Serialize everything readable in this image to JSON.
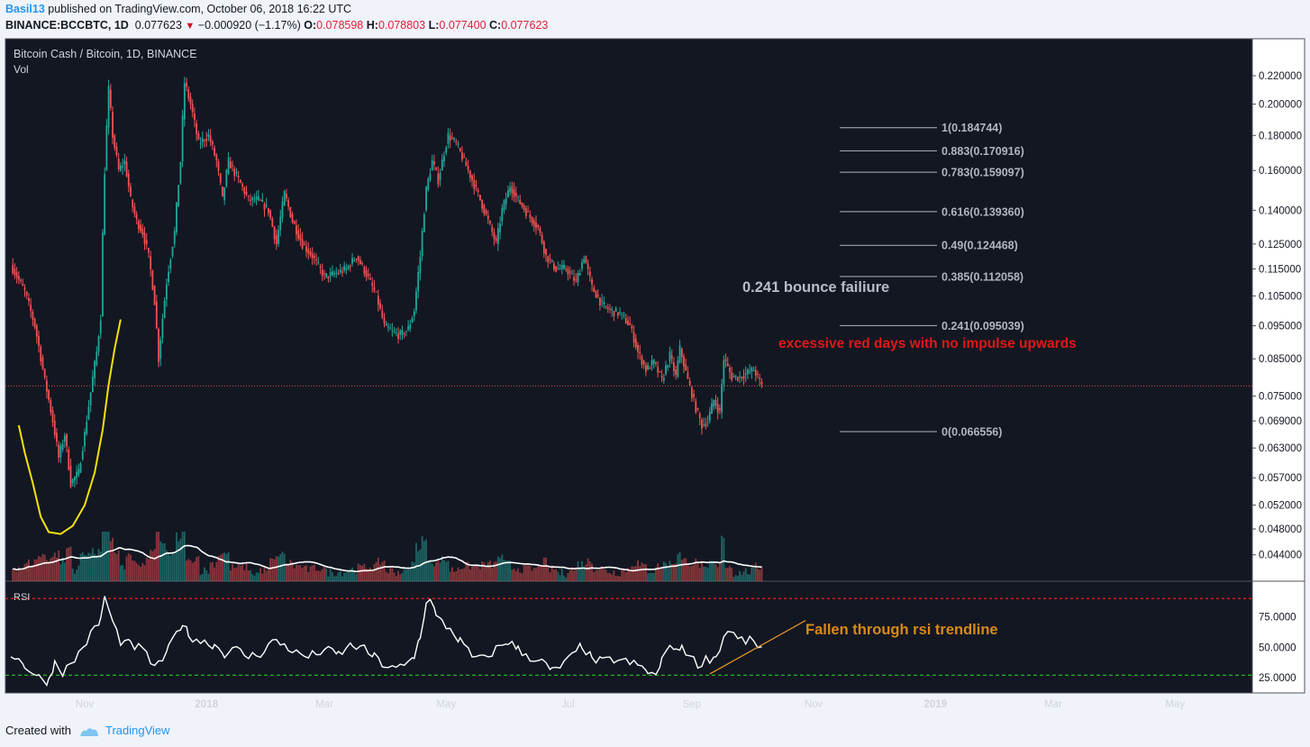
{
  "header": {
    "user": "Basil13",
    "published_text": "published on TradingView.com, October 06, 2018 16:22 UTC",
    "symbol": "BINANCE:BCCBTC, 1D",
    "last": "0.077623",
    "change": "−0.000920 (−1.17%)",
    "o_label": "O:",
    "o": "0.078598",
    "h_label": "H:",
    "h": "0.078803",
    "l_label": "L:",
    "l": "0.077400",
    "c_label": "C:",
    "c": "0.077623"
  },
  "footer": {
    "created_with": "Created with",
    "brand": "TradingView"
  },
  "chart_data": {
    "type": "candlestick",
    "title": "Bitcoin Cash / Bitcoin, 1D, BINANCE",
    "volume_label": "Vol",
    "rsi_label": "RSI",
    "price_ticks": [
      "0.220000",
      "0.200000",
      "0.180000",
      "0.160000",
      "0.140000",
      "0.125000",
      "0.115000",
      "0.105000",
      "0.095000",
      "0.085000",
      "0.075000",
      "0.069000",
      "0.063000",
      "0.057000",
      "0.052000",
      "0.048000",
      "0.044000"
    ],
    "rsi_ticks": [
      "75.0000",
      "50.0000",
      "25.0000"
    ],
    "x_ticks": [
      "Nov",
      "2018",
      "Mar",
      "May",
      "Jul",
      "Sep",
      "Nov",
      "2019",
      "Mar",
      "May"
    ],
    "current_price": 0.077623,
    "price_path": [
      [
        "2017-09-25",
        0.1165
      ],
      [
        "2017-10-02",
        0.1065
      ],
      [
        "2017-10-07",
        0.095
      ],
      [
        "2017-10-12",
        0.079
      ],
      [
        "2017-10-16",
        0.069
      ],
      [
        "2017-10-19",
        0.061
      ],
      [
        "2017-10-22",
        0.066
      ],
      [
        "2017-10-25",
        0.056
      ],
      [
        "2017-10-29",
        0.058
      ],
      [
        "2017-11-01",
        0.066
      ],
      [
        "2017-11-04",
        0.076
      ],
      [
        "2017-11-07",
        0.087
      ],
      [
        "2017-11-09",
        0.098
      ],
      [
        "2017-11-11",
        0.16
      ],
      [
        "2017-11-13",
        0.21
      ],
      [
        "2017-11-15",
        0.18
      ],
      [
        "2017-11-18",
        0.16
      ],
      [
        "2017-11-21",
        0.165
      ],
      [
        "2017-11-24",
        0.145
      ],
      [
        "2017-11-27",
        0.135
      ],
      [
        "2017-11-30",
        0.13
      ],
      [
        "2017-12-03",
        0.12
      ],
      [
        "2017-12-06",
        0.103
      ],
      [
        "2017-12-08",
        0.085
      ],
      [
        "2017-12-12",
        0.11
      ],
      [
        "2017-12-16",
        0.13
      ],
      [
        "2017-12-19",
        0.165
      ],
      [
        "2017-12-21",
        0.215
      ],
      [
        "2017-12-24",
        0.2
      ],
      [
        "2017-12-28",
        0.175
      ],
      [
        "2018-01-02",
        0.18
      ],
      [
        "2018-01-06",
        0.165
      ],
      [
        "2018-01-09",
        0.145
      ],
      [
        "2018-01-12",
        0.165
      ],
      [
        "2018-01-17",
        0.155
      ],
      [
        "2018-01-22",
        0.145
      ],
      [
        "2018-01-27",
        0.145
      ],
      [
        "2018-02-01",
        0.14
      ],
      [
        "2018-02-05",
        0.125
      ],
      [
        "2018-02-09",
        0.148
      ],
      [
        "2018-02-13",
        0.135
      ],
      [
        "2018-02-18",
        0.125
      ],
      [
        "2018-02-23",
        0.12
      ],
      [
        "2018-03-01",
        0.112
      ],
      [
        "2018-03-06",
        0.113
      ],
      [
        "2018-03-12",
        0.115
      ],
      [
        "2018-03-17",
        0.12
      ],
      [
        "2018-03-22",
        0.113
      ],
      [
        "2018-03-27",
        0.105
      ],
      [
        "2018-03-31",
        0.095
      ],
      [
        "2018-04-04",
        0.093
      ],
      [
        "2018-04-08",
        0.092
      ],
      [
        "2018-04-12",
        0.094
      ],
      [
        "2018-04-15",
        0.1
      ],
      [
        "2018-04-18",
        0.12
      ],
      [
        "2018-04-21",
        0.15
      ],
      [
        "2018-04-24",
        0.165
      ],
      [
        "2018-04-27",
        0.155
      ],
      [
        "2018-04-30",
        0.17
      ],
      [
        "2018-05-02",
        0.18
      ],
      [
        "2018-05-06",
        0.175
      ],
      [
        "2018-05-10",
        0.165
      ],
      [
        "2018-05-14",
        0.155
      ],
      [
        "2018-05-18",
        0.145
      ],
      [
        "2018-05-22",
        0.135
      ],
      [
        "2018-05-26",
        0.125
      ],
      [
        "2018-05-29",
        0.14
      ],
      [
        "2018-06-02",
        0.152
      ],
      [
        "2018-06-06",
        0.145
      ],
      [
        "2018-06-11",
        0.138
      ],
      [
        "2018-06-16",
        0.132
      ],
      [
        "2018-06-20",
        0.12
      ],
      [
        "2018-06-25",
        0.115
      ],
      [
        "2018-06-30",
        0.115
      ],
      [
        "2018-07-05",
        0.11
      ],
      [
        "2018-07-09",
        0.12
      ],
      [
        "2018-07-13",
        0.108
      ],
      [
        "2018-07-18",
        0.102
      ],
      [
        "2018-07-22",
        0.1
      ],
      [
        "2018-07-27",
        0.099
      ],
      [
        "2018-08-01",
        0.095
      ],
      [
        "2018-08-05",
        0.087
      ],
      [
        "2018-08-09",
        0.082
      ],
      [
        "2018-08-13",
        0.084
      ],
      [
        "2018-08-17",
        0.079
      ],
      [
        "2018-08-21",
        0.086
      ],
      [
        "2018-08-24",
        0.08
      ],
      [
        "2018-08-26",
        0.088
      ],
      [
        "2018-08-30",
        0.079
      ],
      [
        "2018-09-03",
        0.072
      ],
      [
        "2018-09-06",
        0.068
      ],
      [
        "2018-09-09",
        0.069
      ],
      [
        "2018-09-12",
        0.074
      ],
      [
        "2018-09-15",
        0.071
      ],
      [
        "2018-09-17",
        0.085
      ],
      [
        "2018-09-21",
        0.08
      ],
      [
        "2018-09-25",
        0.08
      ],
      [
        "2018-10-02",
        0.082
      ],
      [
        "2018-10-06",
        0.077623
      ]
    ],
    "rsi_path": [
      [
        "2017-09-25",
        45
      ],
      [
        "2017-10-02",
        35
      ],
      [
        "2017-10-09",
        25
      ],
      [
        "2017-10-14",
        22
      ],
      [
        "2017-10-17",
        38
      ],
      [
        "2017-10-21",
        30
      ],
      [
        "2017-10-25",
        35
      ],
      [
        "2017-10-29",
        45
      ],
      [
        "2017-11-02",
        55
      ],
      [
        "2017-11-06",
        65
      ],
      [
        "2017-11-09",
        72
      ],
      [
        "2017-11-11",
        92
      ],
      [
        "2017-11-15",
        70
      ],
      [
        "2017-11-19",
        55
      ],
      [
        "2017-11-24",
        52
      ],
      [
        "2017-11-30",
        48
      ],
      [
        "2017-12-04",
        38
      ],
      [
        "2017-12-08",
        35
      ],
      [
        "2017-12-13",
        48
      ],
      [
        "2017-12-17",
        62
      ],
      [
        "2017-12-20",
        70
      ],
      [
        "2017-12-23",
        60
      ],
      [
        "2017-12-29",
        55
      ],
      [
        "2018-01-05",
        52
      ],
      [
        "2018-01-10",
        45
      ],
      [
        "2018-01-16",
        48
      ],
      [
        "2018-01-22",
        42
      ],
      [
        "2018-01-28",
        45
      ],
      [
        "2018-02-03",
        55
      ],
      [
        "2018-02-09",
        52
      ],
      [
        "2018-02-15",
        45
      ],
      [
        "2018-02-21",
        42
      ],
      [
        "2018-03-01",
        48
      ],
      [
        "2018-03-08",
        44
      ],
      [
        "2018-03-15",
        52
      ],
      [
        "2018-03-21",
        48
      ],
      [
        "2018-03-26",
        42
      ],
      [
        "2018-03-31",
        35
      ],
      [
        "2018-04-04",
        32
      ],
      [
        "2018-04-10",
        34
      ],
      [
        "2018-04-15",
        42
      ],
      [
        "2018-04-18",
        60
      ],
      [
        "2018-04-21",
        85
      ],
      [
        "2018-04-23",
        92
      ],
      [
        "2018-04-26",
        75
      ],
      [
        "2018-04-29",
        70
      ],
      [
        "2018-05-03",
        65
      ],
      [
        "2018-05-08",
        55
      ],
      [
        "2018-05-14",
        42
      ],
      [
        "2018-05-20",
        40
      ],
      [
        "2018-05-27",
        50
      ],
      [
        "2018-06-01",
        55
      ],
      [
        "2018-06-06",
        48
      ],
      [
        "2018-06-12",
        42
      ],
      [
        "2018-06-18",
        38
      ],
      [
        "2018-06-23",
        30
      ],
      [
        "2018-06-27",
        34
      ],
      [
        "2018-07-03",
        42
      ],
      [
        "2018-07-08",
        52
      ],
      [
        "2018-07-13",
        40
      ],
      [
        "2018-07-18",
        38
      ],
      [
        "2018-07-24",
        40
      ],
      [
        "2018-07-30",
        38
      ],
      [
        "2018-08-05",
        35
      ],
      [
        "2018-08-10",
        30
      ],
      [
        "2018-08-14",
        26
      ],
      [
        "2018-08-17",
        38
      ],
      [
        "2018-08-21",
        55
      ],
      [
        "2018-08-24",
        45
      ],
      [
        "2018-08-27",
        52
      ],
      [
        "2018-08-31",
        42
      ],
      [
        "2018-09-04",
        36
      ],
      [
        "2018-09-08",
        40
      ],
      [
        "2018-09-13",
        42
      ],
      [
        "2018-09-17",
        58
      ],
      [
        "2018-09-20",
        65
      ],
      [
        "2018-09-24",
        56
      ],
      [
        "2018-09-30",
        55
      ],
      [
        "2018-10-06",
        50
      ]
    ],
    "yellow_curve": [
      [
        "2017-09-29",
        0.068
      ],
      [
        "2017-10-02",
        0.062
      ],
      [
        "2017-10-06",
        0.056
      ],
      [
        "2017-10-10",
        0.05
      ],
      [
        "2017-10-14",
        0.0475
      ],
      [
        "2017-10-20",
        0.0472
      ],
      [
        "2017-10-26",
        0.0485
      ],
      [
        "2017-11-01",
        0.052
      ],
      [
        "2017-11-06",
        0.058
      ],
      [
        "2017-11-10",
        0.067
      ],
      [
        "2017-11-13",
        0.078
      ],
      [
        "2017-11-16",
        0.088
      ],
      [
        "2017-11-19",
        0.097
      ]
    ],
    "rsi_trendline": [
      [
        "2018-09-10",
        28
      ],
      [
        "2018-10-28",
        72
      ]
    ],
    "rsi_overbought": 90,
    "rsi_oversold": 27,
    "fib_levels": [
      {
        "label": "1(0.184744)",
        "value": 0.184744
      },
      {
        "label": "0.883(0.170916)",
        "value": 0.170916
      },
      {
        "label": "0.783(0.159097)",
        "value": 0.159097
      },
      {
        "label": "0.616(0.139360)",
        "value": 0.13936
      },
      {
        "label": "0.49(0.124468)",
        "value": 0.124468
      },
      {
        "label": "0.385(0.112058)",
        "value": 0.112058
      },
      {
        "label": "0.241(0.095039)",
        "value": 0.095039
      },
      {
        "label": "0(0.066556)",
        "value": 0.066556
      }
    ],
    "annotations": [
      {
        "text": "0.241 bounce failiure",
        "color": "#b8bcc8"
      },
      {
        "text": "excessive red days with no impulse upwards",
        "color": "#e01818"
      },
      {
        "text": "Fallen through rsi trendline",
        "color": "#d8891a"
      }
    ],
    "colors": {
      "up": "#26a69a",
      "down": "#ef5350",
      "background": "#131722",
      "yellow": "#f5e10a",
      "rsi_trend": "#e8952a",
      "overbought": "#ff1a1a",
      "oversold": "#22cc22"
    }
  }
}
